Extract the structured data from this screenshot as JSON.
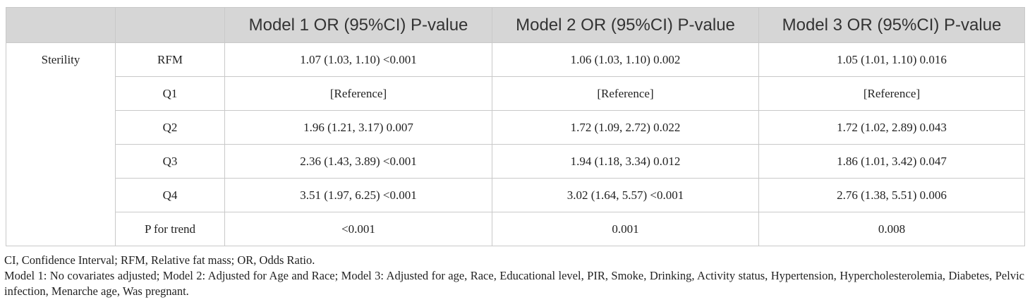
{
  "table": {
    "columns": [
      "Model 1 OR (95%CI) P-value",
      "Model 2 OR (95%CI) P-value",
      "Model 3 OR (95%CI) P-value"
    ],
    "group": "Sterility",
    "rows": [
      {
        "label": "RFM",
        "values": [
          "1.07 (1.03, 1.10) <0.001",
          "1.06 (1.03, 1.10) 0.002",
          "1.05 (1.01, 1.10) 0.016"
        ]
      },
      {
        "label": "Q1",
        "values": [
          "[Reference]",
          "[Reference]",
          "[Reference]"
        ]
      },
      {
        "label": "Q2",
        "values": [
          "1.96 (1.21, 3.17) 0.007",
          "1.72 (1.09, 2.72) 0.022",
          "1.72 (1.02, 2.89) 0.043"
        ]
      },
      {
        "label": "Q3",
        "values": [
          "2.36 (1.43, 3.89) <0.001",
          "1.94 (1.18, 3.34) 0.012",
          "1.86 (1.01, 3.42) 0.047"
        ]
      },
      {
        "label": "Q4",
        "values": [
          "3.51 (1.97, 6.25) <0.001",
          "3.02 (1.64, 5.57) <0.001",
          "2.76 (1.38, 5.51) 0.006"
        ]
      },
      {
        "label": "P for trend",
        "values": [
          "<0.001",
          "0.001",
          "0.008"
        ]
      }
    ]
  },
  "notes": [
    "CI, Confidence Interval; RFM, Relative fat mass; OR, Odds Ratio.",
    "Model 1: No covariates adjusted; Model 2: Adjusted for Age and Race; Model 3: Adjusted for age, Race, Educational level, PIR, Smoke, Drinking, Activity status, Hypertension, Hypercholesterolemia, Diabetes, Pelvic infection, Menarche age, Was pregnant."
  ]
}
